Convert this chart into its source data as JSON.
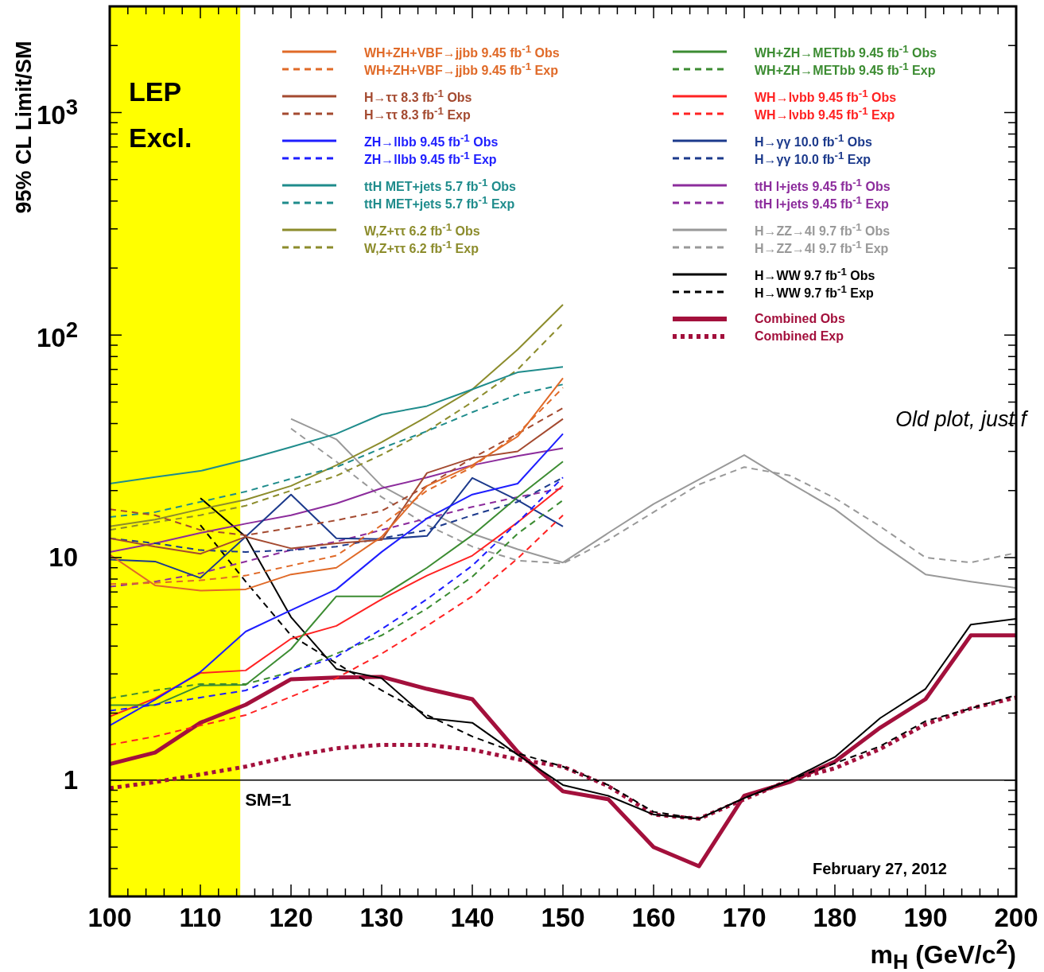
{
  "chart_data": {
    "type": "line",
    "xlabel": "m$_{H}$ (GeV/c$^{2}$)",
    "ylabel": "95% CL Limit/SM",
    "log": "y",
    "legend": "top",
    "grid": false,
    "xlim": [
      100,
      200
    ],
    "ylim": [
      0.3,
      3000
    ],
    "xticks": [
      100,
      {
        "value": 102,
        "label": null
      },
      {
        "value": 104,
        "label": null
      },
      {
        "value": 106,
        "label": null
      },
      {
        "value": 108,
        "label": null
      },
      110,
      {
        "value": 112,
        "label": null
      },
      {
        "value": 114,
        "label": null
      },
      {
        "value": 116,
        "label": null
      },
      {
        "value": 118,
        "label": null
      },
      120,
      {
        "value": 122,
        "label": null
      },
      {
        "value": 124,
        "label": null
      },
      {
        "value": 126,
        "label": null
      },
      {
        "value": 128,
        "label": null
      },
      130,
      {
        "value": 132,
        "label": null
      },
      {
        "value": 134,
        "label": null
      },
      {
        "value": 136,
        "label": null
      },
      {
        "value": 138,
        "label": null
      },
      140,
      {
        "value": 142,
        "label": null
      },
      {
        "value": 144,
        "label": null
      },
      {
        "value": 146,
        "label": null
      },
      {
        "value": 148,
        "label": null
      },
      150,
      {
        "value": 152,
        "label": null
      },
      {
        "value": 154,
        "label": null
      },
      {
        "value": 156,
        "label": null
      },
      {
        "value": 158,
        "label": null
      },
      160,
      {
        "value": 162,
        "label": null
      },
      {
        "value": 164,
        "label": null
      },
      {
        "value": 166,
        "label": null
      },
      {
        "value": 168,
        "label": null
      },
      170,
      {
        "value": 172,
        "label": null
      },
      {
        "value": 174,
        "label": null
      },
      {
        "value": 176,
        "label": null
      },
      {
        "value": 178,
        "label": null
      },
      180,
      {
        "value": 182,
        "label": null
      },
      {
        "value": 184,
        "label": null
      },
      {
        "value": 186,
        "label": null
      },
      {
        "value": 188,
        "label": null
      },
      190,
      {
        "value": 192,
        "label": null
      },
      {
        "value": 194,
        "label": null
      },
      {
        "value": 196,
        "label": null
      },
      {
        "value": 198,
        "label": null
      },
      200
    ],
    "yticks": [
      {
        "value": 0.4,
        "label": null
      },
      {
        "value": 0.5,
        "label": null
      },
      {
        "value": 0.6,
        "label": null
      },
      {
        "value": 0.7,
        "label": null
      },
      {
        "value": 0.8,
        "label": null
      },
      {
        "value": 0.9,
        "label": null
      },
      1,
      {
        "value": 2,
        "label": null
      },
      {
        "value": 3,
        "label": null
      },
      {
        "value": 4,
        "label": null
      },
      {
        "value": 5,
        "label": null
      },
      {
        "value": 6,
        "label": null
      },
      {
        "value": 7,
        "label": null
      },
      {
        "value": 8,
        "label": null
      },
      {
        "value": 9,
        "label": null
      },
      10,
      {
        "value": 20,
        "label": null
      },
      {
        "value": 30,
        "label": null
      },
      {
        "value": 40,
        "label": null
      },
      {
        "value": 50,
        "label": null
      },
      {
        "value": 60,
        "label": null
      },
      {
        "value": 70,
        "label": null
      },
      {
        "value": 80,
        "label": null
      },
      {
        "value": 90,
        "label": null
      },
      {
        "value": 100,
        "label": "10$^{2}$"
      },
      {
        "value": 200,
        "label": null
      },
      {
        "value": 300,
        "label": null
      },
      {
        "value": 400,
        "label": null
      },
      {
        "value": 500,
        "label": null
      },
      {
        "value": 600,
        "label": null
      },
      {
        "value": 700,
        "label": null
      },
      {
        "value": 800,
        "label": null
      },
      {
        "value": 900,
        "label": null
      },
      {
        "value": 1000,
        "label": "10$^{3}$"
      },
      {
        "value": 2000,
        "label": null
      }
    ],
    "x": [
      100,
      105,
      110,
      115,
      120,
      125,
      130,
      135,
      140,
      145,
      150,
      155,
      160,
      165,
      170,
      175,
      180,
      185,
      190,
      195,
      200
    ],
    "bands": [
      {
        "axis": "x",
        "from": 100,
        "to": 114.4,
        "label": "LEP Excl.",
        "color": "#ffff00"
      }
    ],
    "ref_lines": [
      {
        "axis": "y",
        "value": 1,
        "label": "SM=1",
        "color": "#000000"
      }
    ],
    "annotations": [
      "February 27, 2012",
      "Old plot, just f"
    ],
    "series": [
      {
        "name": "WH+ZH+VBF→jjbb 9.45 fb$^{-1}$ Obs",
        "color": "#e06a28",
        "line_style": "solid",
        "x": [
          100,
          105,
          110,
          115,
          120,
          125,
          130,
          135,
          140,
          145,
          150
        ],
        "values": [
          10.3,
          7.5,
          7.1,
          7.2,
          8.4,
          9.0,
          12.4,
          21,
          26,
          35,
          64
        ]
      },
      {
        "name": "WH+ZH+VBF→jjbb 9.45 fb$^{-1}$ Exp",
        "color": "#e06a28",
        "line_style": "dashed",
        "x": [
          100,
          105,
          110,
          115,
          120,
          125,
          130,
          135,
          140,
          145,
          150
        ],
        "values": [
          7.6,
          7.7,
          7.9,
          8.3,
          9.2,
          10.2,
          14,
          20,
          25.5,
          36,
          58
        ]
      },
      {
        "name": "H→ττ 8.3 fb$^{-1}$ Obs",
        "color": "#a44a30",
        "line_style": "solid",
        "x": [
          100,
          105,
          110,
          115,
          120,
          125,
          130,
          135,
          140,
          145,
          150
        ],
        "values": [
          12.2,
          11.2,
          10.4,
          12.4,
          11,
          11.6,
          12,
          24,
          28,
          30,
          42
        ]
      },
      {
        "name": "H→ττ 8.3 fb$^{-1}$ Exp",
        "color": "#a44a30",
        "line_style": "dashed",
        "x": [
          100,
          105,
          110,
          115,
          120,
          125,
          130,
          135,
          140,
          145,
          150
        ],
        "values": [
          16.5,
          15.5,
          13.3,
          12.6,
          13.6,
          14.7,
          16.2,
          21,
          28,
          36,
          47
        ]
      },
      {
        "name": "ZH→llbb 9.45 fb$^{-1}$ Obs",
        "color": "#1e1eff",
        "line_style": "solid",
        "x": [
          100,
          105,
          110,
          115,
          120,
          125,
          130,
          135,
          140,
          145,
          150
        ],
        "values": [
          1.76,
          2.3,
          3.06,
          4.65,
          5.8,
          7.2,
          10.6,
          15,
          19.2,
          21.5,
          36
        ]
      },
      {
        "name": "ZH→llbb 9.45 fb$^{-1}$ Exp",
        "color": "#1e1eff",
        "line_style": "dashed",
        "x": [
          100,
          105,
          110,
          115,
          120,
          125,
          130,
          135,
          140,
          145,
          150
        ],
        "values": [
          2.05,
          2.18,
          2.35,
          2.53,
          3.06,
          3.58,
          4.77,
          6.5,
          9.2,
          14.4,
          22.9
        ]
      },
      {
        "name": "ttH MET+jets 5.7 fb$^{-1}$ Obs",
        "color": "#1f8c8c",
        "line_style": "solid",
        "x": [
          100,
          105,
          110,
          115,
          120,
          125,
          130,
          135,
          140,
          145,
          150
        ],
        "values": [
          21.5,
          23,
          24.5,
          27.5,
          31.4,
          36,
          44,
          48,
          57,
          68,
          72
        ]
      },
      {
        "name": "ttH MET+jets 5.7 fb$^{-1}$ Exp",
        "color": "#1f8c8c",
        "line_style": "dashed",
        "x": [
          100,
          105,
          110,
          115,
          120,
          125,
          130,
          135,
          140,
          145,
          150
        ],
        "values": [
          15.2,
          16,
          17.8,
          19.8,
          22.6,
          25.5,
          31,
          37,
          45,
          54,
          60
        ]
      },
      {
        "name": "W,Z+ττ 6.2 fb$^{-1}$ Obs",
        "color": "#8c8c2c",
        "line_style": "solid",
        "x": [
          100,
          105,
          110,
          115,
          120,
          125,
          130,
          135,
          140,
          145,
          150
        ],
        "values": [
          13.8,
          14.8,
          16.5,
          18.2,
          21,
          26,
          33,
          43,
          57,
          86,
          137
        ]
      },
      {
        "name": "W,Z+ττ 6.2 fb$^{-1}$ Exp",
        "color": "#8c8c2c",
        "line_style": "dashed",
        "x": [
          100,
          105,
          110,
          115,
          120,
          125,
          130,
          135,
          140,
          145,
          150
        ],
        "values": [
          13.3,
          14.4,
          15.5,
          17.1,
          20,
          23.3,
          29,
          37,
          50,
          70,
          113
        ]
      },
      {
        "name": "WH+ZH→METbb 9.45 fb$^{-1}$ Obs",
        "color": "#3c8c32",
        "line_style": "solid",
        "x": [
          100,
          105,
          110,
          115,
          120,
          125,
          130,
          135,
          140,
          145,
          150
        ],
        "values": [
          2.17,
          2.17,
          2.66,
          2.68,
          3.88,
          6.7,
          6.7,
          9,
          12.6,
          18.7,
          27
        ]
      },
      {
        "name": "WH+ZH→METbb 9.45 fb$^{-1}$ Exp",
        "color": "#3c8c32",
        "line_style": "dashed",
        "x": [
          100,
          105,
          110,
          115,
          120,
          125,
          130,
          135,
          140,
          145,
          150
        ],
        "values": [
          2.33,
          2.53,
          2.7,
          2.7,
          3.06,
          3.7,
          4.47,
          5.9,
          8.2,
          12.8,
          18.1
        ]
      },
      {
        "name": "WH→lνbb 9.45 fb$^{-1}$ Obs",
        "color": "#ff2222",
        "line_style": "solid",
        "x": [
          100,
          105,
          110,
          115,
          120,
          125,
          130,
          135,
          140,
          145,
          150
        ],
        "values": [
          1.93,
          2.33,
          3.03,
          3.11,
          4.32,
          4.93,
          6.5,
          8.3,
          10.2,
          14.4,
          21
        ]
      },
      {
        "name": "WH→lνbb 9.45 fb$^{-1}$ Exp",
        "color": "#ff2222",
        "line_style": "dashed",
        "x": [
          100,
          105,
          110,
          115,
          120,
          125,
          130,
          135,
          140,
          145,
          150
        ],
        "values": [
          1.44,
          1.57,
          1.76,
          1.96,
          2.37,
          2.87,
          3.7,
          4.93,
          6.7,
          9.9,
          15.5
        ]
      },
      {
        "name": "H→γγ 10.0 fb$^{-1}$ Obs",
        "color": "#1c3a8c",
        "line_style": "solid",
        "x": [
          100,
          105,
          110,
          115,
          120,
          125,
          130,
          135,
          140,
          145,
          150
        ],
        "values": [
          9.8,
          9.6,
          8.1,
          12.4,
          19.2,
          12.2,
          12.1,
          12.5,
          22.8,
          18.1,
          13.8
        ]
      },
      {
        "name": "H→γγ 10.0 fb$^{-1}$ Exp",
        "color": "#1c3a8c",
        "line_style": "dashed",
        "x": [
          100,
          105,
          110,
          115,
          120,
          125,
          130,
          135,
          140,
          145,
          150
        ],
        "values": [
          12.2,
          11.6,
          10.8,
          10.6,
          10.8,
          11.2,
          12.2,
          13.3,
          15.5,
          17.8,
          22.9
        ]
      },
      {
        "name": "ttH l+jets 9.45 fb$^{-1}$ Obs",
        "color": "#8c2c9c",
        "line_style": "solid",
        "x": [
          100,
          105,
          110,
          115,
          120,
          125,
          130,
          135,
          140,
          145,
          150
        ],
        "values": [
          10.6,
          11.6,
          12.9,
          14.2,
          15.5,
          17.5,
          20.5,
          22.9,
          26,
          28.6,
          31
        ]
      },
      {
        "name": "ttH l+jets 9.45 fb$^{-1}$ Exp",
        "color": "#8c2c9c",
        "line_style": "dashed",
        "x": [
          100,
          105,
          110,
          115,
          120,
          125,
          130,
          135,
          140,
          145,
          150
        ],
        "values": [
          7.4,
          7.8,
          8.5,
          9.6,
          10.8,
          11.8,
          13.3,
          15,
          16.9,
          18.7,
          20.5
        ]
      },
      {
        "name": "H→ZZ→4l 9.7 fb$^{-1}$ Obs",
        "color": "#999999",
        "line_style": "solid",
        "x": [
          120,
          125,
          130,
          135,
          140,
          145,
          150,
          155,
          160,
          165,
          170,
          175,
          180,
          185,
          190,
          195,
          200
        ],
        "values": [
          42,
          34,
          21,
          16.3,
          12.8,
          10.9,
          9.5,
          12.9,
          17.4,
          22.4,
          28.9,
          21.7,
          16.5,
          11.6,
          8.4,
          7.8,
          7.3
        ]
      },
      {
        "name": "H→ZZ→4l 9.7 fb$^{-1}$ Exp",
        "color": "#999999",
        "line_style": "dashed",
        "x": [
          120,
          125,
          130,
          135,
          140,
          145,
          150,
          155,
          160,
          165,
          170,
          175,
          180,
          185,
          190,
          195,
          200
        ],
        "values": [
          38,
          27,
          18.7,
          14,
          11.2,
          9.7,
          9.4,
          12,
          16,
          21.3,
          25.5,
          23.4,
          18.5,
          13.8,
          10,
          9.5,
          10.5
        ]
      },
      {
        "name": "H→WW 9.7 fb$^{-1}$ Obs",
        "color": "#000000",
        "line_style": "solid",
        "x": [
          110,
          115,
          120,
          125,
          130,
          135,
          140,
          145,
          150,
          155,
          160,
          165,
          170,
          175,
          180,
          185,
          190,
          195,
          200
        ],
        "values": [
          18.5,
          12.4,
          5.4,
          3.16,
          2.87,
          1.9,
          1.81,
          1.3,
          0.95,
          0.85,
          0.7,
          0.67,
          0.83,
          1.0,
          1.27,
          1.9,
          2.57,
          5.0,
          5.3
        ]
      },
      {
        "name": "H→WW 9.7 fb$^{-1}$ Exp",
        "color": "#000000",
        "line_style": "dashed",
        "x": [
          110,
          115,
          120,
          125,
          130,
          135,
          140,
          145,
          150,
          155,
          160,
          165,
          170,
          175,
          180,
          185,
          190,
          195,
          200
        ],
        "values": [
          14,
          7.8,
          4.47,
          3.35,
          2.53,
          1.96,
          1.57,
          1.32,
          1.15,
          0.95,
          0.72,
          0.67,
          0.83,
          1.0,
          1.19,
          1.42,
          1.84,
          2.1,
          2.41
        ]
      },
      {
        "name": "Combined Obs",
        "color": "#a3103c",
        "line_style": "solid",
        "values": [
          1.18,
          1.33,
          1.81,
          2.18,
          2.84,
          2.89,
          2.91,
          2.57,
          2.31,
          1.34,
          0.89,
          0.82,
          0.5,
          0.41,
          0.85,
          0.98,
          1.21,
          1.72,
          2.31,
          4.47,
          4.47
        ]
      },
      {
        "name": "Combined Exp",
        "color": "#a3103c",
        "line_style": "dotted",
        "values": [
          0.92,
          0.98,
          1.06,
          1.15,
          1.28,
          1.39,
          1.44,
          1.44,
          1.37,
          1.24,
          1.15,
          0.94,
          0.7,
          0.67,
          0.82,
          1.0,
          1.13,
          1.38,
          1.78,
          2.1,
          2.35
        ]
      }
    ]
  }
}
